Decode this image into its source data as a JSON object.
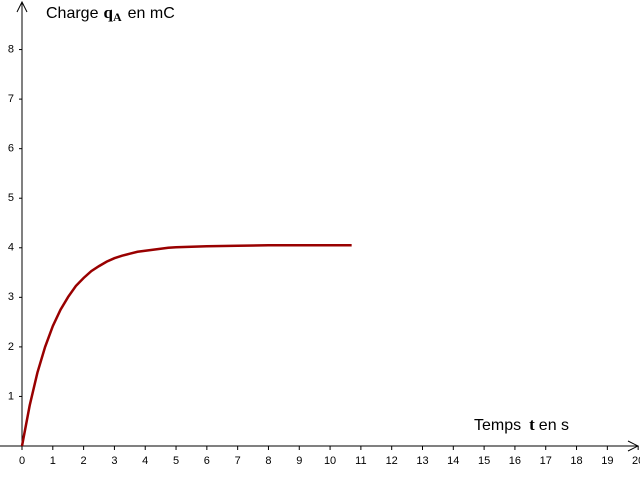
{
  "chart_data": {
    "type": "line",
    "y_label": {
      "text": "Charge",
      "symbol": "q",
      "subscript": "A",
      "unit": "en mC"
    },
    "x_label": {
      "text": "Temps",
      "symbol": "t",
      "unit": "en  s"
    },
    "x": [
      0,
      0.25,
      0.5,
      0.75,
      1,
      1.25,
      1.5,
      1.75,
      2,
      2.25,
      2.5,
      2.75,
      3,
      3.25,
      3.5,
      3.75,
      4,
      4.25,
      4.5,
      4.75,
      5,
      5.5,
      6,
      7,
      8,
      9,
      10,
      10.7
    ],
    "series": [
      {
        "name": "qA",
        "color": "#990000",
        "values": [
          0,
          0.82,
          1.48,
          2.0,
          2.42,
          2.75,
          3.01,
          3.23,
          3.39,
          3.53,
          3.63,
          3.72,
          3.79,
          3.84,
          3.88,
          3.92,
          3.94,
          3.96,
          3.98,
          4.0,
          4.01,
          4.02,
          4.03,
          4.04,
          4.05,
          4.05,
          4.05,
          4.05
        ]
      }
    ],
    "xlim": [
      0,
      20.06
    ],
    "ylim": [
      0,
      9
    ],
    "xticks": [
      0,
      1,
      2,
      3,
      4,
      5,
      6,
      7,
      8,
      9,
      10,
      11,
      12,
      13,
      14,
      15,
      16,
      17,
      18,
      19,
      20
    ],
    "yticks": [
      1,
      2,
      3,
      4,
      5,
      6,
      7,
      8
    ]
  }
}
